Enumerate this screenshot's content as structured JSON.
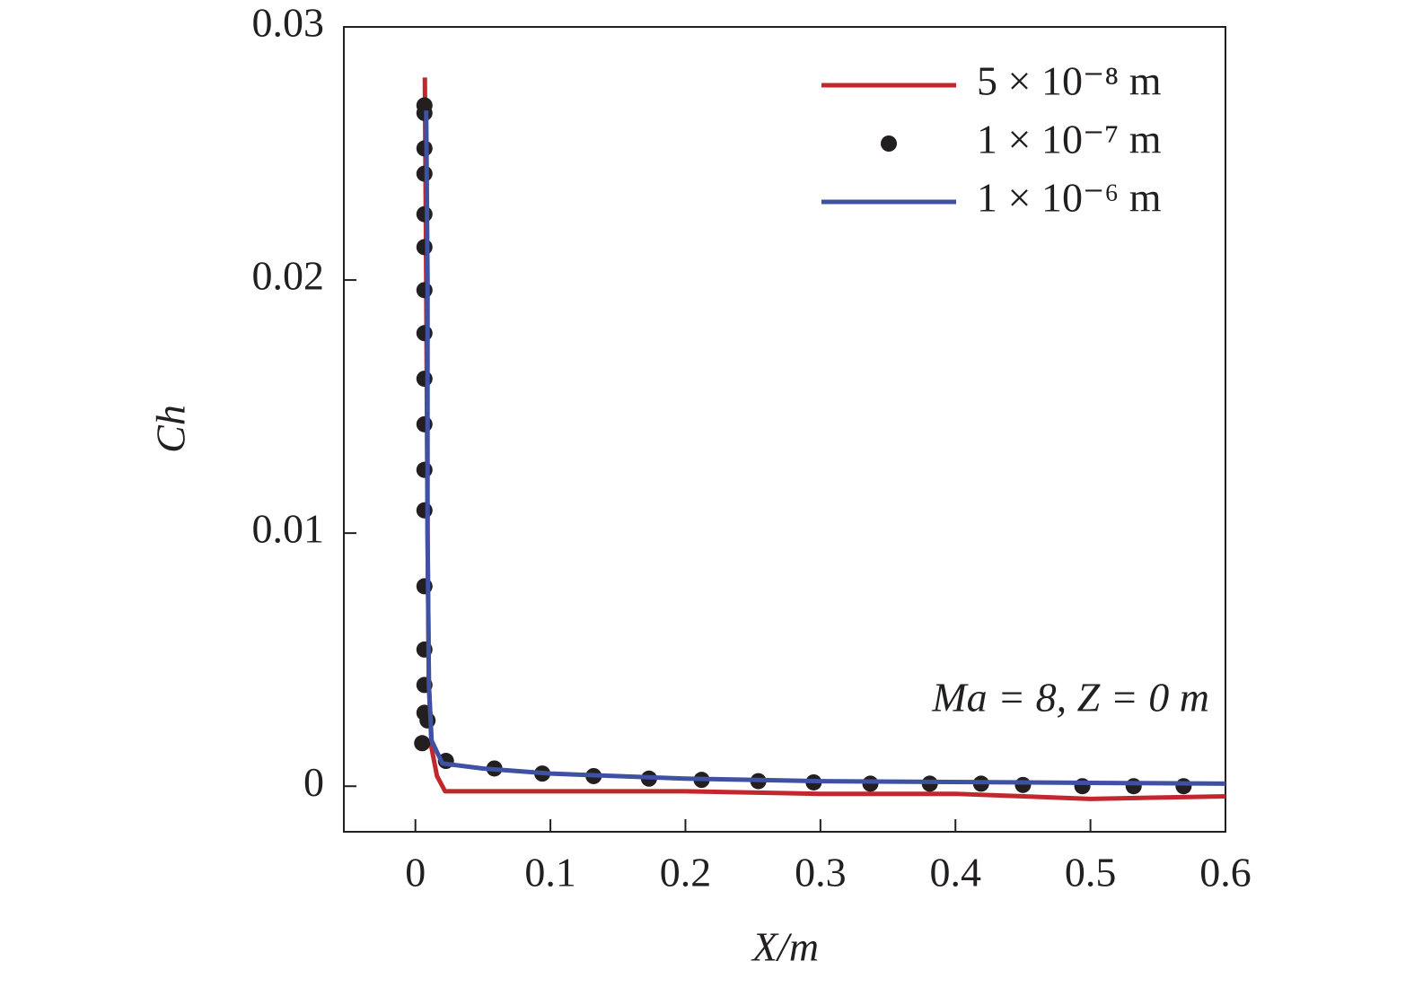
{
  "chart_data": {
    "type": "line",
    "xlabel": "X/m",
    "ylabel": "Ch",
    "annotation": "Ma = 8, Z = 0 m",
    "xlim": [
      -0.053,
      0.6
    ],
    "xticks": [
      0,
      0.1,
      0.2,
      0.3,
      0.4,
      0.5,
      0.6
    ],
    "ylim": [
      -0.0018,
      0.03
    ],
    "yticks": [
      0,
      0.01,
      0.02,
      0.03
    ],
    "legend": "upper right",
    "series": [
      {
        "name": "5 × 10⁻⁸ m",
        "color": "#c1272d",
        "style": "line",
        "x": [
          0.007,
          0.008,
          0.009,
          0.01,
          0.012,
          0.016,
          0.022,
          0.05,
          0.2,
          0.3,
          0.4,
          0.5,
          0.6
        ],
        "values": [
          0.028,
          0.02,
          0.01,
          0.004,
          0.0015,
          0.0004,
          -0.0002,
          -0.0002,
          -0.0002,
          -0.0003,
          -0.0003,
          -0.0005,
          -0.0004
        ]
      },
      {
        "name": "1 × 10⁻⁷ m",
        "color": "#231f20",
        "style": "dots",
        "x": [
          0.0067,
          0.0067,
          0.0067,
          0.0067,
          0.0067,
          0.0067,
          0.0067,
          0.0067,
          0.0067,
          0.0067,
          0.0067,
          0.0067,
          0.0067,
          0.0067,
          0.0067,
          0.0067,
          0.009,
          0.005,
          0.0226,
          0.0585,
          0.094,
          0.132,
          0.173,
          0.212,
          0.254,
          0.295,
          0.337,
          0.381,
          0.419,
          0.45,
          0.494,
          0.532,
          0.569
        ],
        "values": [
          0.0269,
          0.0266,
          0.0252,
          0.0242,
          0.0226,
          0.0213,
          0.0196,
          0.0179,
          0.0161,
          0.0143,
          0.0125,
          0.0109,
          0.0079,
          0.0054,
          0.004,
          0.0029,
          0.0026,
          0.0017,
          0.001,
          0.0007,
          0.0005,
          0.0004,
          0.0003,
          0.00025,
          0.0002,
          0.00015,
          0.0001,
          0.0001,
          0.0001,
          5e-05,
          0,
          0,
          0
        ]
      },
      {
        "name": "1 × 10⁻⁶ m",
        "color": "#3f51a3",
        "style": "line",
        "x": [
          0.008,
          0.009,
          0.009,
          0.01,
          0.012,
          0.02,
          0.05,
          0.1,
          0.2,
          0.3,
          0.6
        ],
        "values": [
          0.0267,
          0.02,
          0.01,
          0.004,
          0.0018,
          0.0009,
          0.0007,
          0.0005,
          0.0003,
          0.0002,
          0.0001
        ]
      }
    ]
  }
}
